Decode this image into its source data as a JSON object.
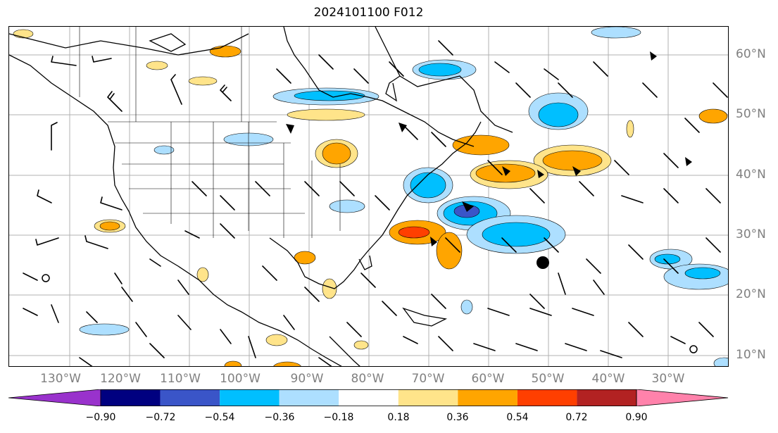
{
  "title": "2024101100 F012",
  "lon_labels": [
    "130°W",
    "120°W",
    "110°W",
    "100°W",
    "90°W",
    "80°W",
    "70°W",
    "60°W",
    "50°W",
    "40°W",
    "30°W"
  ],
  "lat_labels": [
    "60°N",
    "50°N",
    "40°N",
    "30°N",
    "20°N",
    "10°N"
  ],
  "colorbar": {
    "ticks": [
      "−0.90",
      "−0.72",
      "−0.54",
      "−0.36",
      "−0.18",
      "0.18",
      "0.36",
      "0.54",
      "0.72",
      "0.90"
    ],
    "colors": [
      "#9932CC",
      "#000080",
      "#3A55C8",
      "#00BFFF",
      "#ADDFFF",
      "#FFFFFF",
      "#FFE48A",
      "#FFA500",
      "#FF3F00",
      "#B22222",
      "#FF82AB"
    ]
  },
  "map_elements": {
    "gridlines": "gray",
    "state_borders": "visible",
    "coastlines": "visible",
    "wind_barbs": "visible",
    "storm_marker": "filled-circle"
  }
}
